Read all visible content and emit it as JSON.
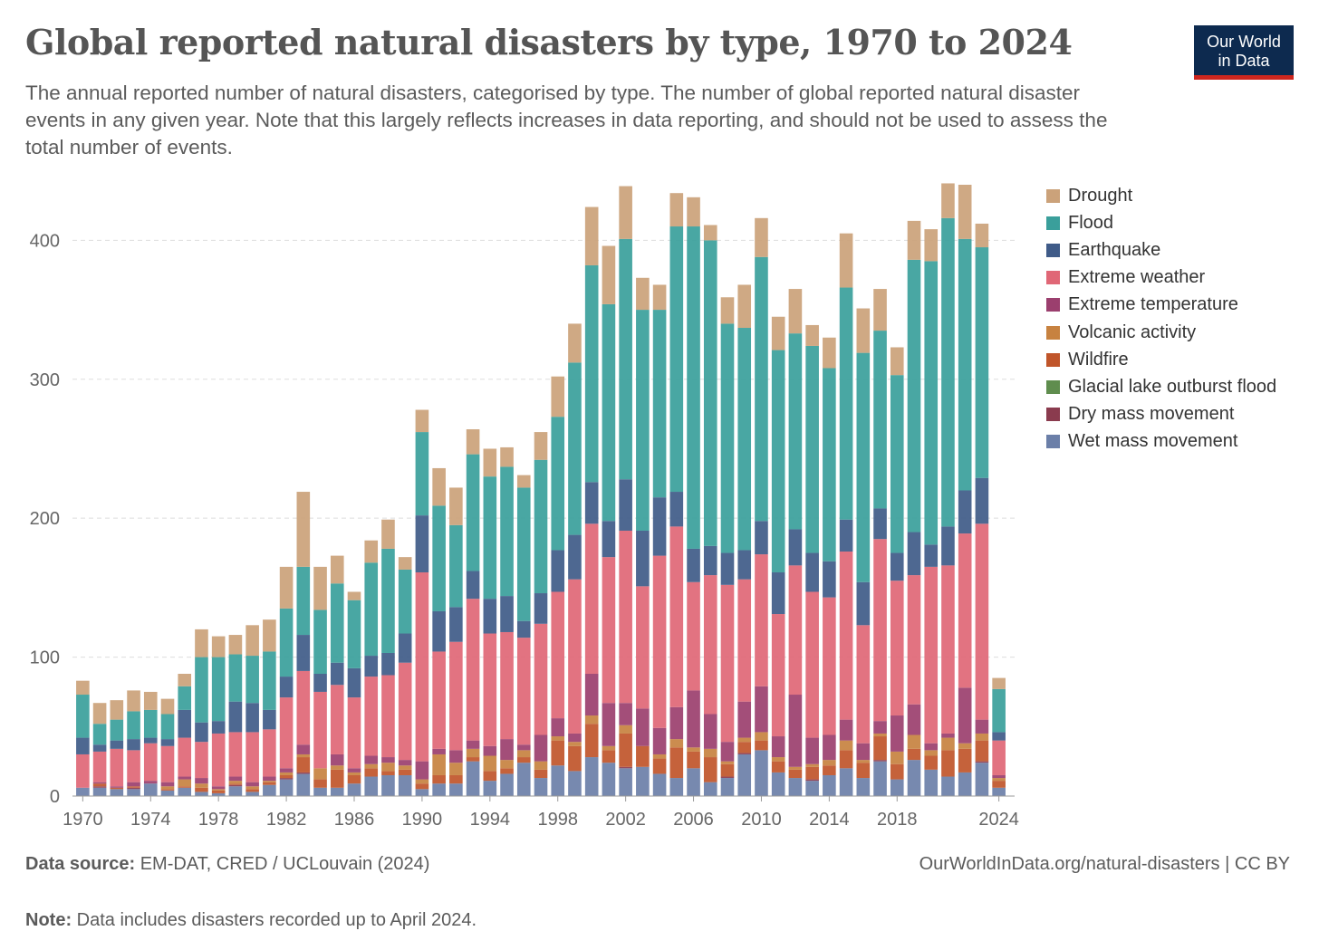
{
  "header": {
    "title": "Global reported natural disasters by type, 1970 to 2024",
    "subtitle": "The annual reported number of natural disasters, categorised by type. The number of global reported natural disaster events in any given year. Note that this largely reflects increases in data reporting, and should not be used to assess the total number of events."
  },
  "logo": {
    "line1": "Our World",
    "line2": "in Data"
  },
  "footer": {
    "source_label": "Data source:",
    "source_text": "EM-DAT, CRED / UCLouvain (2024)",
    "note_label": "Note:",
    "note_text": "Data includes disasters recorded up to April 2024.",
    "url": "OurWorldInData.org/natural-disasters",
    "license": "| CC BY"
  },
  "colors": {
    "grid": "#dddddd",
    "axis_text": "#666666",
    "logo_bg": "#0d2a4f",
    "logo_accent": "#ce261e"
  },
  "chart_data": {
    "type": "bar",
    "stacked": true,
    "title": "Global reported natural disasters by type, 1970 to 2024",
    "xlabel": "",
    "ylabel": "",
    "ylim": [
      0,
      440
    ],
    "yticks": [
      0,
      100,
      200,
      300,
      400
    ],
    "xticks": [
      1970,
      1974,
      1978,
      1982,
      1986,
      1990,
      1994,
      1998,
      2002,
      2006,
      2010,
      2014,
      2018,
      2024
    ],
    "grid": true,
    "legend_position": "right",
    "categories": [
      1970,
      1971,
      1972,
      1973,
      1974,
      1975,
      1976,
      1977,
      1978,
      1979,
      1980,
      1981,
      1982,
      1983,
      1984,
      1985,
      1986,
      1987,
      1988,
      1989,
      1990,
      1991,
      1992,
      1993,
      1994,
      1995,
      1996,
      1997,
      1998,
      1999,
      2000,
      2001,
      2002,
      2003,
      2004,
      2005,
      2006,
      2007,
      2008,
      2009,
      2010,
      2011,
      2012,
      2013,
      2014,
      2015,
      2016,
      2017,
      2018,
      2019,
      2020,
      2021,
      2022,
      2023,
      2024
    ],
    "series": [
      {
        "name": "Wet mass movement",
        "color": "#6b7fa8",
        "values": [
          6,
          6,
          5,
          5,
          9,
          4,
          6,
          3,
          2,
          7,
          3,
          8,
          12,
          16,
          6,
          6,
          9,
          14,
          15,
          15,
          5,
          9,
          9,
          25,
          11,
          16,
          24,
          13,
          22,
          18,
          28,
          24,
          20,
          21,
          16,
          13,
          20,
          10,
          13,
          30,
          33,
          17,
          13,
          11,
          15,
          20,
          13,
          25,
          12,
          26,
          19,
          14,
          17,
          24,
          6
        ]
      },
      {
        "name": "Dry mass movement",
        "color": "#8a3b4e",
        "values": [
          0,
          1,
          0,
          1,
          0,
          0,
          0,
          0,
          0,
          1,
          0,
          0,
          1,
          1,
          0,
          0,
          0,
          0,
          0,
          0,
          0,
          0,
          0,
          0,
          0,
          0,
          0,
          0,
          0,
          0,
          0,
          0,
          1,
          0,
          0,
          0,
          0,
          0,
          1,
          1,
          0,
          0,
          0,
          1,
          0,
          0,
          0,
          1,
          0,
          0,
          0,
          0,
          0,
          1,
          0
        ]
      },
      {
        "name": "Glacial lake outburst flood",
        "color": "#5f8d4e",
        "values": [
          0,
          0,
          0,
          0,
          0,
          0,
          0,
          0,
          0,
          0,
          0,
          0,
          0,
          0,
          0,
          0,
          0,
          0,
          0,
          0,
          0,
          0,
          0,
          0,
          0,
          0,
          0,
          0,
          0,
          0,
          0,
          0,
          0,
          0,
          0,
          0,
          0,
          0,
          0,
          0,
          0,
          0,
          0,
          0,
          0,
          0,
          0,
          0,
          0,
          0,
          0,
          0,
          0,
          0,
          0
        ]
      },
      {
        "name": "Wildfire",
        "color": "#c0552a",
        "values": [
          0,
          2,
          1,
          1,
          0,
          1,
          1,
          3,
          2,
          1,
          2,
          2,
          2,
          11,
          6,
          13,
          6,
          6,
          3,
          4,
          4,
          6,
          6,
          3,
          7,
          4,
          4,
          6,
          18,
          18,
          24,
          9,
          24,
          15,
          11,
          22,
          12,
          18,
          9,
          8,
          7,
          8,
          6,
          9,
          7,
          13,
          11,
          17,
          11,
          8,
          10,
          19,
          17,
          15,
          5
        ]
      },
      {
        "name": "Volcanic activity",
        "color": "#c78240",
        "values": [
          0,
          0,
          0,
          0,
          0,
          2,
          5,
          3,
          1,
          2,
          2,
          1,
          2,
          2,
          8,
          3,
          2,
          3,
          6,
          3,
          3,
          15,
          9,
          6,
          11,
          6,
          5,
          6,
          3,
          3,
          6,
          3,
          6,
          0,
          3,
          6,
          3,
          6,
          2,
          3,
          6,
          3,
          2,
          2,
          4,
          7,
          2,
          2,
          9,
          10,
          4,
          9,
          4,
          5,
          2
        ]
      },
      {
        "name": "Extreme temperature",
        "color": "#9b3f6e",
        "values": [
          0,
          1,
          1,
          3,
          2,
          3,
          2,
          4,
          2,
          3,
          3,
          3,
          3,
          7,
          0,
          8,
          3,
          6,
          4,
          4,
          13,
          4,
          9,
          6,
          7,
          15,
          4,
          19,
          13,
          6,
          30,
          31,
          16,
          27,
          19,
          23,
          41,
          25,
          14,
          26,
          33,
          15,
          52,
          19,
          18,
          15,
          12,
          9,
          26,
          22,
          5,
          3,
          40,
          10,
          2
        ]
      },
      {
        "name": "Extreme weather",
        "color": "#e06776",
        "values": [
          24,
          22,
          27,
          23,
          27,
          26,
          28,
          26,
          38,
          32,
          36,
          34,
          51,
          53,
          55,
          50,
          51,
          57,
          59,
          70,
          136,
          70,
          78,
          102,
          81,
          77,
          77,
          80,
          91,
          111,
          108,
          105,
          124,
          88,
          124,
          130,
          78,
          100,
          113,
          88,
          95,
          88,
          93,
          105,
          99,
          121,
          85,
          131,
          97,
          93,
          127,
          121,
          111,
          141,
          25
        ]
      },
      {
        "name": "Earthquake",
        "color": "#3f5b88",
        "values": [
          12,
          5,
          6,
          8,
          4,
          5,
          20,
          14,
          9,
          22,
          21,
          14,
          15,
          26,
          13,
          16,
          21,
          15,
          16,
          21,
          41,
          29,
          25,
          20,
          25,
          26,
          12,
          22,
          30,
          32,
          30,
          26,
          37,
          40,
          42,
          25,
          24,
          21,
          23,
          21,
          24,
          30,
          26,
          28,
          26,
          23,
          31,
          22,
          20,
          31,
          16,
          28,
          31,
          33,
          6
        ]
      },
      {
        "name": "Flood",
        "color": "#3a9f9b",
        "values": [
          31,
          15,
          15,
          20,
          20,
          18,
          17,
          47,
          46,
          34,
          34,
          42,
          49,
          49,
          46,
          57,
          49,
          67,
          75,
          46,
          60,
          76,
          59,
          84,
          88,
          93,
          96,
          96,
          96,
          124,
          156,
          156,
          173,
          159,
          135,
          191,
          232,
          220,
          165,
          160,
          190,
          160,
          141,
          149,
          139,
          167,
          165,
          128,
          128,
          196,
          204,
          222,
          181,
          166,
          31
        ]
      },
      {
        "name": "Drought",
        "color": "#cba27a",
        "values": [
          10,
          15,
          14,
          15,
          13,
          11,
          9,
          20,
          15,
          14,
          22,
          23,
          30,
          54,
          31,
          20,
          6,
          16,
          21,
          9,
          16,
          27,
          27,
          18,
          20,
          14,
          9,
          20,
          29,
          28,
          42,
          42,
          38,
          23,
          18,
          24,
          21,
          11,
          19,
          31,
          28,
          24,
          32,
          15,
          22,
          39,
          32,
          30,
          20,
          28,
          23,
          25,
          39,
          17,
          8
        ]
      }
    ],
    "legend_order": [
      "Drought",
      "Flood",
      "Earthquake",
      "Extreme weather",
      "Extreme temperature",
      "Volcanic activity",
      "Wildfire",
      "Glacial lake outburst flood",
      "Dry mass movement",
      "Wet mass movement"
    ]
  }
}
